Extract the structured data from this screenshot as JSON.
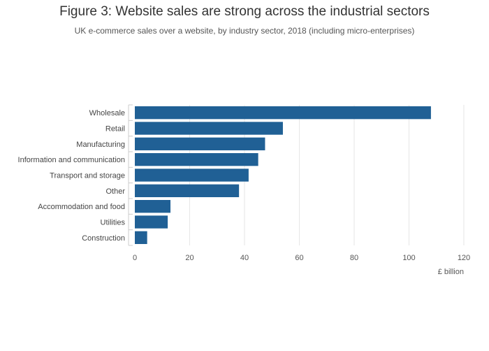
{
  "chart_data": {
    "type": "bar",
    "orientation": "horizontal",
    "title": "Figure 3: Website sales are strong across the industrial sectors",
    "subtitle": "UK e-commerce sales over a website, by industry sector, 2018 (including micro-enterprises)",
    "categories": [
      "Wholesale",
      "Retail",
      "Manufacturing",
      "Information and communication",
      "Transport and storage",
      "Other",
      "Accommodation and food",
      "Utilities",
      "Construction"
    ],
    "values": [
      108,
      54,
      47.5,
      45,
      41.5,
      38,
      13,
      12,
      4.5
    ],
    "xlabel": "£ billion",
    "ylabel": "",
    "xlim": [
      0,
      120
    ],
    "xticks": [
      "0",
      "20",
      "40",
      "60",
      "80",
      "100",
      "120"
    ],
    "grid": true,
    "bar_color": "#206095"
  }
}
